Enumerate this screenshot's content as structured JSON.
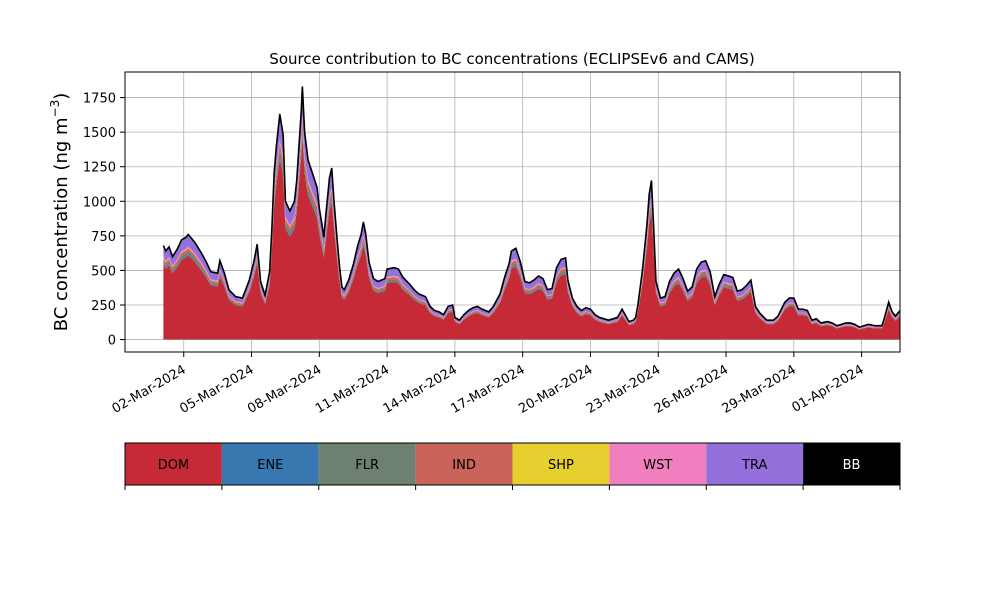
{
  "chart_data": {
    "type": "area",
    "stacked": true,
    "title": "Source contribution to BC concentrations (ECLIPSEv6 and CAMS)",
    "xlabel": "",
    "ylabel_main": "BC concentration (ng m",
    "ylabel_exp": "−3",
    "ylabel_close": ")",
    "ylim": [
      -90,
      1935
    ],
    "yticks": [
      0,
      250,
      500,
      750,
      1000,
      1250,
      1500,
      1750
    ],
    "ytick_labels": [
      "0",
      "250",
      "500",
      "750",
      "1000",
      "1250",
      "1500",
      "1750"
    ],
    "xlim_days": [
      -2.6,
      31.7
    ],
    "xticks_days": [
      0,
      3,
      6,
      9,
      12,
      15,
      18,
      21,
      24,
      27,
      30
    ],
    "xtick_labels": [
      "02-Mar-2024",
      "05-Mar-2024",
      "08-Mar-2024",
      "11-Mar-2024",
      "14-Mar-2024",
      "17-Mar-2024",
      "20-Mar-2024",
      "23-Mar-2024",
      "26-Mar-2024",
      "29-Mar-2024",
      "01-Apr-2024"
    ],
    "grid": true,
    "legend_placement": "bottom colorbar",
    "total_profile": [
      [
        -0.9,
        680
      ],
      [
        -0.8,
        640
      ],
      [
        -0.65,
        670
      ],
      [
        -0.5,
        600
      ],
      [
        -0.3,
        650
      ],
      [
        -0.1,
        720
      ],
      [
        0.1,
        740
      ],
      [
        0.2,
        760
      ],
      [
        0.5,
        700
      ],
      [
        0.8,
        620
      ],
      [
        1.0,
        560
      ],
      [
        1.2,
        490
      ],
      [
        1.5,
        480
      ],
      [
        1.6,
        570
      ],
      [
        1.8,
        480
      ],
      [
        2.0,
        360
      ],
      [
        2.3,
        310
      ],
      [
        2.6,
        300
      ],
      [
        2.9,
        430
      ],
      [
        3.1,
        560
      ],
      [
        3.25,
        690
      ],
      [
        3.4,
        420
      ],
      [
        3.6,
        320
      ],
      [
        3.8,
        490
      ],
      [
        3.9,
        800
      ],
      [
        4.0,
        1200
      ],
      [
        4.1,
        1400
      ],
      [
        4.25,
        1630
      ],
      [
        4.4,
        1480
      ],
      [
        4.5,
        1000
      ],
      [
        4.7,
        930
      ],
      [
        4.9,
        1000
      ],
      [
        5.0,
        1150
      ],
      [
        5.1,
        1400
      ],
      [
        5.2,
        1650
      ],
      [
        5.25,
        1830
      ],
      [
        5.35,
        1500
      ],
      [
        5.5,
        1300
      ],
      [
        5.6,
        1250
      ],
      [
        5.8,
        1150
      ],
      [
        5.9,
        1100
      ],
      [
        6.0,
        950
      ],
      [
        6.1,
        850
      ],
      [
        6.2,
        740
      ],
      [
        6.3,
        920
      ],
      [
        6.45,
        1170
      ],
      [
        6.55,
        1240
      ],
      [
        6.65,
        1000
      ],
      [
        6.8,
        700
      ],
      [
        6.9,
        520
      ],
      [
        7.0,
        380
      ],
      [
        7.1,
        360
      ],
      [
        7.3,
        430
      ],
      [
        7.5,
        540
      ],
      [
        7.7,
        680
      ],
      [
        7.85,
        760
      ],
      [
        7.95,
        850
      ],
      [
        8.05,
        770
      ],
      [
        8.2,
        560
      ],
      [
        8.4,
        440
      ],
      [
        8.6,
        420
      ],
      [
        8.9,
        440
      ],
      [
        9.0,
        510
      ],
      [
        9.3,
        520
      ],
      [
        9.5,
        510
      ],
      [
        9.7,
        450
      ],
      [
        10.0,
        400
      ],
      [
        10.2,
        360
      ],
      [
        10.4,
        330
      ],
      [
        10.7,
        310
      ],
      [
        10.9,
        240
      ],
      [
        11.1,
        210
      ],
      [
        11.3,
        200
      ],
      [
        11.5,
        180
      ],
      [
        11.7,
        240
      ],
      [
        11.9,
        250
      ],
      [
        12.0,
        160
      ],
      [
        12.2,
        140
      ],
      [
        12.4,
        180
      ],
      [
        12.6,
        210
      ],
      [
        12.8,
        230
      ],
      [
        13.0,
        240
      ],
      [
        13.2,
        220
      ],
      [
        13.5,
        200
      ],
      [
        13.7,
        240
      ],
      [
        14.0,
        330
      ],
      [
        14.2,
        450
      ],
      [
        14.4,
        550
      ],
      [
        14.5,
        640
      ],
      [
        14.7,
        660
      ],
      [
        14.9,
        560
      ],
      [
        15.1,
        420
      ],
      [
        15.3,
        410
      ],
      [
        15.5,
        430
      ],
      [
        15.7,
        460
      ],
      [
        15.9,
        440
      ],
      [
        16.1,
        360
      ],
      [
        16.3,
        370
      ],
      [
        16.5,
        520
      ],
      [
        16.7,
        580
      ],
      [
        16.9,
        590
      ],
      [
        17.0,
        430
      ],
      [
        17.2,
        300
      ],
      [
        17.4,
        240
      ],
      [
        17.6,
        210
      ],
      [
        17.8,
        230
      ],
      [
        18.0,
        220
      ],
      [
        18.2,
        180
      ],
      [
        18.4,
        160
      ],
      [
        18.6,
        150
      ],
      [
        18.8,
        140
      ],
      [
        19.0,
        150
      ],
      [
        19.2,
        160
      ],
      [
        19.4,
        220
      ],
      [
        19.5,
        190
      ],
      [
        19.7,
        130
      ],
      [
        19.9,
        140
      ],
      [
        20.0,
        160
      ],
      [
        20.1,
        250
      ],
      [
        20.3,
        500
      ],
      [
        20.5,
        830
      ],
      [
        20.6,
        1050
      ],
      [
        20.7,
        1150
      ],
      [
        20.8,
        800
      ],
      [
        20.9,
        420
      ],
      [
        21.1,
        300
      ],
      [
        21.3,
        310
      ],
      [
        21.5,
        420
      ],
      [
        21.7,
        480
      ],
      [
        21.9,
        510
      ],
      [
        22.1,
        440
      ],
      [
        22.3,
        350
      ],
      [
        22.5,
        380
      ],
      [
        22.7,
        510
      ],
      [
        22.9,
        560
      ],
      [
        23.1,
        570
      ],
      [
        23.3,
        490
      ],
      [
        23.5,
        310
      ],
      [
        23.7,
        400
      ],
      [
        23.9,
        470
      ],
      [
        24.1,
        460
      ],
      [
        24.3,
        450
      ],
      [
        24.5,
        350
      ],
      [
        24.7,
        360
      ],
      [
        24.9,
        390
      ],
      [
        25.1,
        430
      ],
      [
        25.3,
        240
      ],
      [
        25.5,
        190
      ],
      [
        25.8,
        140
      ],
      [
        26.1,
        140
      ],
      [
        26.3,
        170
      ],
      [
        26.6,
        270
      ],
      [
        26.8,
        300
      ],
      [
        27.0,
        300
      ],
      [
        27.2,
        220
      ],
      [
        27.4,
        220
      ],
      [
        27.6,
        210
      ],
      [
        27.8,
        140
      ],
      [
        28.0,
        150
      ],
      [
        28.2,
        120
      ],
      [
        28.5,
        130
      ],
      [
        28.7,
        120
      ],
      [
        28.9,
        100
      ],
      [
        29.1,
        110
      ],
      [
        29.3,
        120
      ],
      [
        29.5,
        120
      ],
      [
        29.7,
        110
      ],
      [
        29.9,
        90
      ],
      [
        30.1,
        100
      ],
      [
        30.3,
        110
      ],
      [
        30.6,
        100
      ],
      [
        30.9,
        100
      ],
      [
        31.0,
        150
      ],
      [
        31.2,
        270
      ],
      [
        31.35,
        200
      ],
      [
        31.5,
        170
      ],
      [
        31.7,
        210
      ]
    ],
    "total_profile_note_scale": [
      0,
      1
    ],
    "segments_days": [
      [
        -0.9,
        680
      ],
      [
        0.2,
        760
      ],
      [
        1.6,
        570
      ],
      [
        3.25,
        690
      ],
      [
        4.25,
        1630
      ],
      [
        5.25,
        1830
      ],
      [
        6.55,
        1240
      ],
      [
        7.95,
        850
      ],
      [
        20.7,
        1150
      ]
    ],
    "series": [
      {
        "name": "DOM",
        "color": "#c62a37",
        "share": 0.8
      },
      {
        "name": "ENE",
        "color": "#3778b1",
        "share": 0.01
      },
      {
        "name": "FLR",
        "color": "#6e8070",
        "share": 0.03
      },
      {
        "name": "IND",
        "color": "#c96458",
        "share": 0.03
      },
      {
        "name": "SHP",
        "color": "#e7cf30",
        "share": 0.005
      },
      {
        "name": "WST",
        "color": "#f07fbf",
        "share": 0.015
      },
      {
        "name": "TRA",
        "color": "#9370db",
        "share": 0.12
      },
      {
        "name": "BB",
        "color": "#000000",
        "share": 0.0
      }
    ],
    "legend": [
      {
        "name": "DOM",
        "color": "#c62a37",
        "text_color": "#000000"
      },
      {
        "name": "ENE",
        "color": "#3778b1",
        "text_color": "#000000"
      },
      {
        "name": "FLR",
        "color": "#6e8070",
        "text_color": "#000000"
      },
      {
        "name": "IND",
        "color": "#c96458",
        "text_color": "#000000"
      },
      {
        "name": "SHP",
        "color": "#e7cf30",
        "text_color": "#000000"
      },
      {
        "name": "WST",
        "color": "#f07fbf",
        "text_color": "#000000"
      },
      {
        "name": "TRA",
        "color": "#9370db",
        "text_color": "#000000"
      },
      {
        "name": "BB",
        "color": "#000000",
        "text_color": "#ffffff"
      }
    ]
  }
}
